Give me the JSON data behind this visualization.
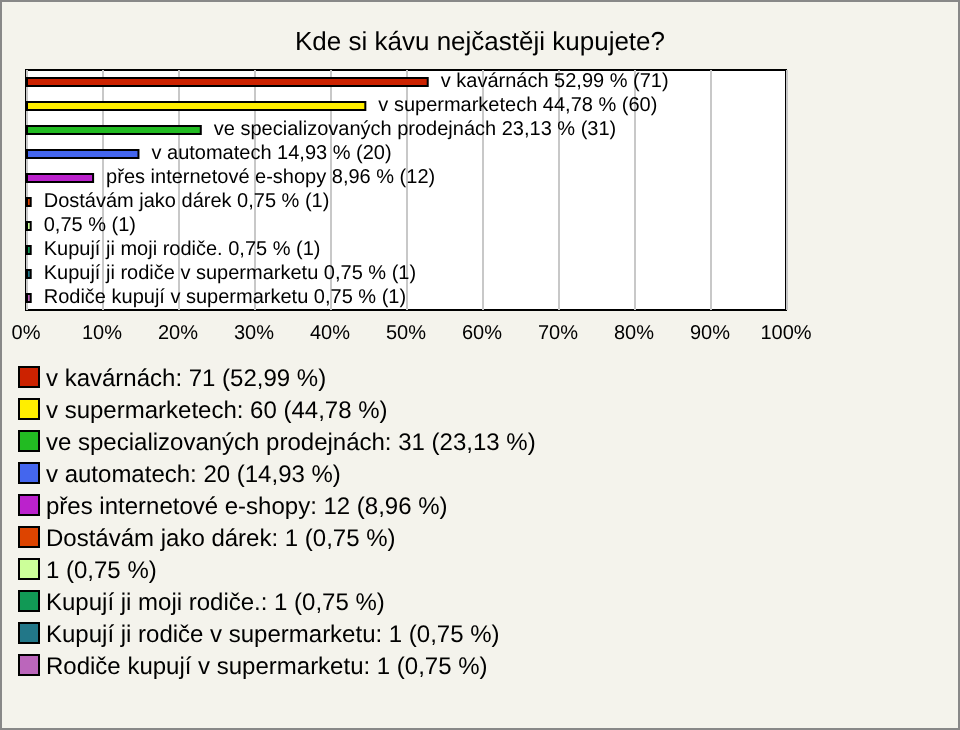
{
  "chart_data": {
    "type": "bar",
    "orientation": "horizontal",
    "title": "Kde si kávu nejčastěji kupujete?",
    "categories": [
      "v kavárnách",
      "v supermarketech",
      "ve specializovaných prodejnách",
      "v automatech",
      "přes internetové e-shopy",
      "Dostávám jako dárek",
      null,
      "Kupují ji moji rodiče.",
      "Kupují ji rodiče v supermarketu",
      "Rodiče kupují v supermarketu"
    ],
    "values": [
      52.99,
      44.78,
      23.13,
      14.93,
      8.96,
      0.75,
      0.75,
      0.75,
      0.75,
      0.75
    ],
    "value_labels": [
      "52,99 % (71)",
      "44,78 % (60)",
      "23,13 % (31)",
      "14,93 % (20)",
      "8,96 % (12)",
      "0,75 % (1)",
      "0,75 % (1)",
      "0,75 % (1)",
      "0,75 % (1)",
      "0,75 % (1)"
    ],
    "colors": [
      "#cc2200",
      "#ffee00",
      "#22bb22",
      "#4466ee",
      "#bb22cc",
      "#dd4400",
      "#ccff99",
      "#119955",
      "#227788",
      "#bb66bb"
    ],
    "xlim": [
      0,
      100
    ],
    "xticks": [
      {
        "value": 0,
        "label": "0%"
      },
      {
        "value": 10,
        "label": "10%"
      },
      {
        "value": 20,
        "label": "20%"
      },
      {
        "value": 30,
        "label": "30%"
      },
      {
        "value": 40,
        "label": "40%"
      },
      {
        "value": 50,
        "label": "50%"
      },
      {
        "value": 60,
        "label": "60%"
      },
      {
        "value": 70,
        "label": "70%"
      },
      {
        "value": 80,
        "label": "80%"
      },
      {
        "value": 90,
        "label": "90%"
      },
      {
        "value": 100,
        "label": "100%"
      }
    ],
    "grid": "x",
    "tick_labels": "x",
    "annotations": [
      "v kavárnách: 71 (52,99 %)",
      "v supermarketech: 60 (44,78 %)",
      "ve specializovaných prodejnách: 31 (23,13 %)",
      "v automatech: 20 (14,93 %)",
      "přes internetové e-shopy: 12 (8,96 %)",
      "Dostávám jako dárek: 1 (0,75 %)",
      "1 (0,75 %)",
      "Kupují ji moji rodiče.: 1 (0,75 %)",
      "Kupují ji rodiče v supermarketu: 1 (0,75 %)",
      "Rodiče kupují v supermarketu: 1 (0,75 %)"
    ]
  }
}
